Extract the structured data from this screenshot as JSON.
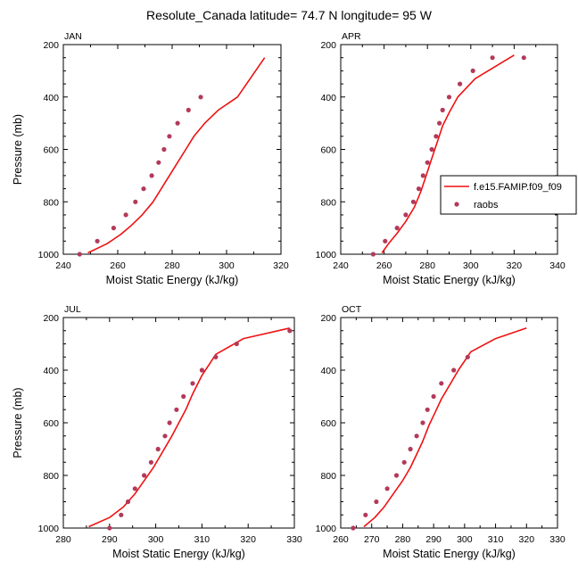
{
  "title": "Resolute_Canada  latitude= 74.7 N longitude= 95 W",
  "legend": {
    "model_label": "f.e15.FAMIP.f09_f09",
    "obs_label": "raobs"
  },
  "colors": {
    "model_line": "#ee1111",
    "obs_marker": "#b23a5a",
    "axis": "#000000"
  },
  "chart_data": [
    {
      "type": "line",
      "panel": "JAN",
      "xlabel": "Moist Static Energy (kJ/kg)",
      "ylabel": "Pressure (mb)",
      "xlim": [
        240,
        320
      ],
      "ylim": [
        1000,
        200
      ],
      "xticks": [
        240,
        260,
        280,
        300,
        320
      ],
      "yticks": [
        200,
        400,
        600,
        800,
        1000
      ],
      "series": [
        {
          "name": "f.e15.FAMIP.f09_f09",
          "style": "line",
          "x": [
            249.0,
            256.0,
            261.0,
            265.0,
            269.0,
            273.0,
            276.0,
            279.0,
            282.0,
            285.0,
            288.0,
            292.0,
            297.0,
            304.0,
            314.0
          ],
          "y": [
            995,
            960,
            925,
            890,
            850,
            800,
            750,
            700,
            650,
            600,
            550,
            500,
            450,
            400,
            250
          ]
        },
        {
          "name": "raobs",
          "style": "markers",
          "x": [
            246.0,
            252.5,
            258.5,
            263.0,
            266.5,
            269.5,
            272.5,
            275.0,
            277.0,
            279.0,
            282.0,
            286.0,
            290.5
          ],
          "y": [
            1000,
            950,
            900,
            850,
            800,
            750,
            700,
            650,
            600,
            550,
            500,
            450,
            400
          ]
        }
      ]
    },
    {
      "type": "line",
      "panel": "APR",
      "xlabel": "Moist Static Energy (kJ/kg)",
      "ylabel": "",
      "xlim": [
        240,
        340
      ],
      "ylim": [
        1000,
        200
      ],
      "xticks": [
        240,
        260,
        280,
        300,
        320,
        340
      ],
      "yticks": [
        200,
        400,
        600,
        800,
        1000
      ],
      "legend_position": "right",
      "series": [
        {
          "name": "f.e15.FAMIP.f09_f09",
          "style": "line",
          "x": [
            259.0,
            262.0,
            266.0,
            270.0,
            274.0,
            277.0,
            279.0,
            281.0,
            283.0,
            285.0,
            287.0,
            290.0,
            294.0,
            302.0,
            320.0
          ],
          "y": [
            995,
            960,
            920,
            875,
            820,
            760,
            710,
            660,
            610,
            560,
            510,
            460,
            400,
            330,
            240
          ]
        },
        {
          "name": "raobs",
          "style": "markers",
          "x": [
            255.0,
            260.5,
            266.0,
            270.0,
            273.5,
            276.0,
            278.0,
            280.0,
            282.0,
            284.0,
            285.5,
            287.0,
            290.0,
            295.0,
            301.0,
            310.0,
            324.5
          ],
          "y": [
            1000,
            950,
            900,
            850,
            800,
            750,
            700,
            650,
            600,
            550,
            500,
            450,
            400,
            350,
            300,
            250,
            250
          ]
        }
      ]
    },
    {
      "type": "line",
      "panel": "JUL",
      "xlabel": "Moist Static Energy (kJ/kg)",
      "ylabel": "Pressure (mb)",
      "xlim": [
        280,
        330
      ],
      "ylim": [
        1000,
        200
      ],
      "xticks": [
        280,
        290,
        300,
        310,
        320,
        330
      ],
      "yticks": [
        200,
        400,
        600,
        800,
        1000
      ],
      "series": [
        {
          "name": "f.e15.FAMIP.f09_f09",
          "style": "line",
          "x": [
            285.5,
            290.0,
            293.0,
            295.5,
            297.5,
            299.5,
            301.5,
            303.5,
            305.0,
            306.5,
            308.0,
            310.0,
            313.0,
            319.0,
            329.0
          ],
          "y": [
            995,
            960,
            920,
            870,
            820,
            770,
            710,
            650,
            600,
            550,
            490,
            420,
            340,
            280,
            240
          ]
        },
        {
          "name": "raobs",
          "style": "markers",
          "x": [
            290.0,
            292.5,
            294.0,
            295.5,
            297.5,
            299.0,
            300.5,
            302.0,
            303.0,
            304.5,
            306.0,
            308.0,
            310.0,
            313.0,
            317.5,
            329.0
          ],
          "y": [
            1000,
            950,
            900,
            850,
            800,
            750,
            700,
            650,
            600,
            550,
            500,
            450,
            400,
            350,
            300,
            250
          ]
        }
      ]
    },
    {
      "type": "line",
      "panel": "OCT",
      "xlabel": "Moist Static Energy (kJ/kg)",
      "ylabel": "",
      "xlim": [
        260,
        330
      ],
      "ylim": [
        1000,
        200
      ],
      "xticks": [
        260,
        270,
        280,
        290,
        300,
        310,
        320,
        330
      ],
      "yticks": [
        200,
        400,
        600,
        800,
        1000
      ],
      "series": [
        {
          "name": "f.e15.FAMIP.f09_f09",
          "style": "line",
          "x": [
            267.5,
            271.0,
            274.0,
            277.0,
            280.0,
            282.5,
            284.5,
            286.5,
            288.5,
            290.5,
            292.5,
            295.0,
            298.0,
            302.0,
            310.0,
            320.0
          ],
          "y": [
            995,
            960,
            920,
            870,
            820,
            770,
            720,
            670,
            610,
            560,
            510,
            460,
            400,
            330,
            280,
            240
          ]
        },
        {
          "name": "raobs",
          "style": "markers",
          "x": [
            264.0,
            268.0,
            271.5,
            275.0,
            278.0,
            280.5,
            282.5,
            284.5,
            286.5,
            288.0,
            290.0,
            292.5,
            296.5,
            301.0
          ],
          "y": [
            1000,
            950,
            900,
            850,
            800,
            750,
            700,
            650,
            600,
            550,
            500,
            450,
            400,
            350
          ]
        }
      ]
    }
  ]
}
